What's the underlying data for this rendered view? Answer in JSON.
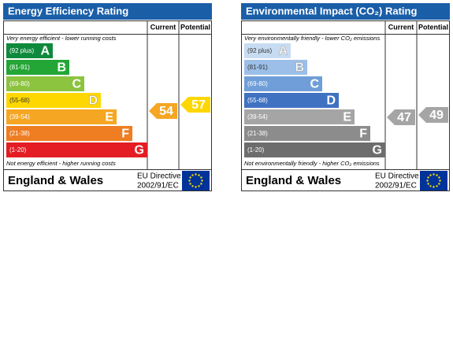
{
  "panels": [
    {
      "title": "Energy Efficiency Rating",
      "columns": [
        "Current",
        "Potential"
      ],
      "top_note": "Very energy efficient - lower running costs",
      "bands": [
        {
          "range": "(92 plus)",
          "letter": "A",
          "color": "#0f8a3c"
        },
        {
          "range": "(81-91)",
          "letter": "B",
          "color": "#24a636"
        },
        {
          "range": "(69-80)",
          "letter": "C",
          "color": "#8cc33f"
        },
        {
          "range": "(55-68)",
          "letter": "D",
          "color": "#ffd700"
        },
        {
          "range": "(39-54)",
          "letter": "E",
          "color": "#f5a623"
        },
        {
          "range": "(21-38)",
          "letter": "F",
          "color": "#ef7d22"
        },
        {
          "range": "(1-20)",
          "letter": "G",
          "color": "#e31d23"
        }
      ],
      "bottom_note": "Not energy efficient - higher running costs",
      "current": {
        "value": 54,
        "color": "#f5a623"
      },
      "potential": {
        "value": 57,
        "color": "#ffd700"
      },
      "region": "England & Wales",
      "directive": [
        "EU Directive",
        "2002/91/EC"
      ]
    },
    {
      "title": "Environmental Impact (CO₂) Rating",
      "columns": [
        "Current",
        "Potential"
      ],
      "top_note": "Very environmentally friendly - lower CO₂ emissions",
      "bands": [
        {
          "range": "(92 plus)",
          "letter": "A",
          "color": "#c7dcf2"
        },
        {
          "range": "(81-91)",
          "letter": "B",
          "color": "#9bbfe8"
        },
        {
          "range": "(69-80)",
          "letter": "C",
          "color": "#6f9ed8"
        },
        {
          "range": "(55-68)",
          "letter": "D",
          "color": "#3f72c0"
        },
        {
          "range": "(39-54)",
          "letter": "E",
          "color": "#a5a5a5"
        },
        {
          "range": "(21-38)",
          "letter": "F",
          "color": "#8c8c8c"
        },
        {
          "range": "(1-20)",
          "letter": "G",
          "color": "#6d6d6d"
        }
      ],
      "bottom_note": "Not environmentally friendly - higher CO₂ emissions",
      "current": {
        "value": 47,
        "color": "#a5a5a5"
      },
      "potential": {
        "value": 49,
        "color": "#a5a5a5"
      },
      "region": "England & Wales",
      "directive": [
        "EU Directive",
        "2002/91/EC"
      ]
    }
  ]
}
